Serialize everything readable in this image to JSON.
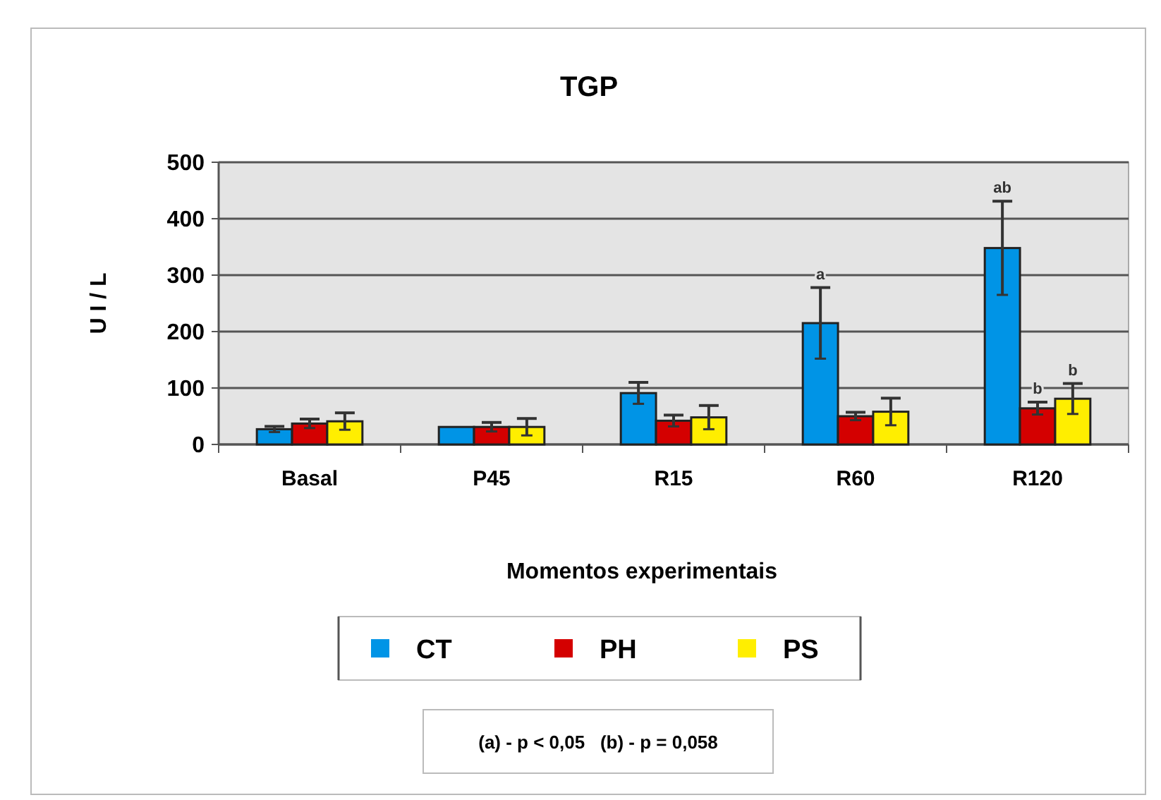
{
  "chart_data": {
    "type": "bar",
    "title": "TGP",
    "xlabel": "Momentos experimentais",
    "ylabel": "U I / L",
    "categories": [
      "Basal",
      "P45",
      "R15",
      "R60",
      "R120"
    ],
    "series": [
      {
        "name": "CT",
        "color": "#0094e6",
        "values": [
          27,
          31,
          91,
          215,
          348
        ],
        "errors": [
          5,
          null,
          19,
          63,
          83
        ]
      },
      {
        "name": "PH",
        "color": "#d40000",
        "values": [
          37,
          31,
          42,
          50,
          64
        ],
        "errors": [
          8,
          8,
          10,
          7,
          11
        ]
      },
      {
        "name": "PS",
        "color": "#ffee00",
        "values": [
          41,
          31,
          48,
          58,
          81
        ],
        "errors": [
          15,
          15,
          21,
          24,
          27
        ]
      }
    ],
    "ylim": [
      0,
      500
    ],
    "yticks": [
      0,
      100,
      200,
      300,
      400,
      500
    ],
    "grid": "y",
    "legend": "bottom",
    "annotations": [
      "a",
      "ab",
      "b",
      "b",
      "(a) - p < 0,05   (b) - p = 0,058"
    ]
  }
}
